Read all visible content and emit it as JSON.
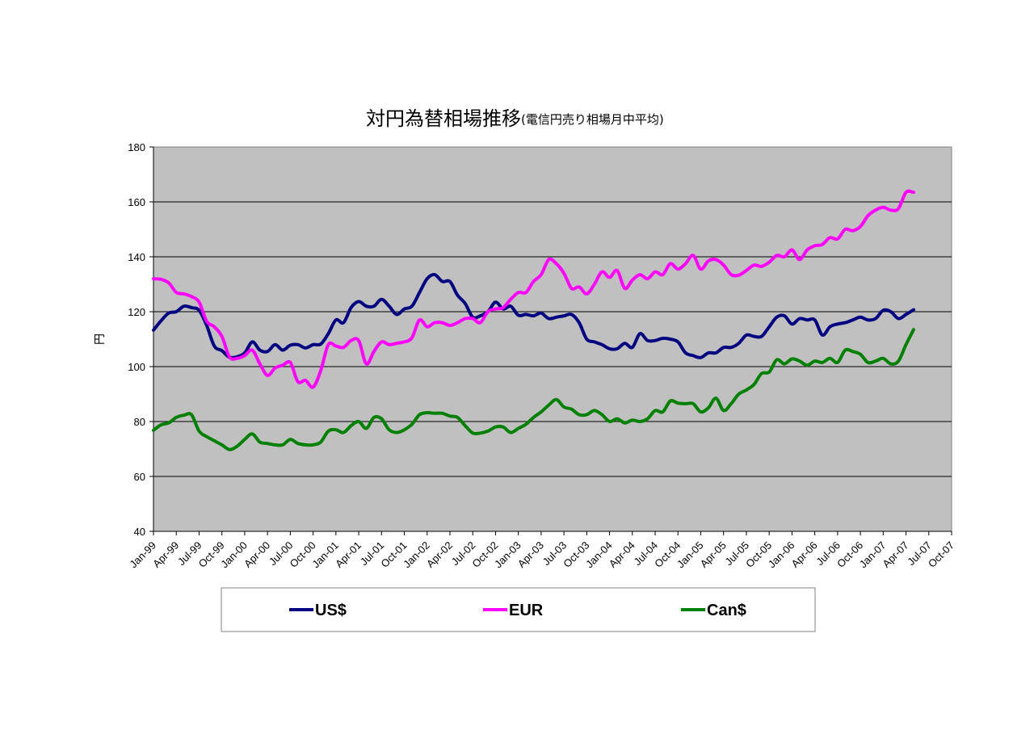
{
  "chart_data": {
    "type": "line",
    "title": "対円為替相場推移",
    "subtitle": "(電信円売り相場月中平均)",
    "ylabel": "円",
    "ylim": [
      40,
      180
    ],
    "yticks": [
      40,
      60,
      80,
      100,
      120,
      140,
      160,
      180
    ],
    "grid": true,
    "legend": "bottom",
    "x_tick_labels": [
      "Jan-99",
      "Apr-99",
      "Jul-99",
      "Oct-99",
      "Jan-00",
      "Apr-00",
      "Jul-00",
      "Oct-00",
      "Jan-01",
      "Apr-01",
      "Jul-01",
      "Oct-01",
      "Jan-02",
      "Apr-02",
      "Jul-02",
      "Oct-02",
      "Jan-03",
      "Apr-03",
      "Jul-03",
      "Oct-03",
      "Jan-04",
      "Apr-04",
      "Jul-04",
      "Oct-04",
      "Jan-05",
      "Apr-05",
      "Jul-05",
      "Oct-05",
      "Jan-06",
      "Apr-06",
      "Jul-06",
      "Oct-06",
      "Jan-07",
      "Apr-07",
      "Jul-07",
      "Oct-07"
    ],
    "plot_background": "#c0c0c0",
    "series": [
      {
        "name": "US$",
        "color": "#000080",
        "values": [
          113.3,
          116.7,
          119.5,
          120.0,
          122.0,
          121.5,
          120.5,
          115.0,
          107.5,
          105.8,
          103.4,
          103.6,
          105.0,
          109.0,
          106.0,
          105.5,
          108.0,
          106.0,
          107.8,
          108.0,
          106.8,
          108.0,
          108.2,
          112.0,
          117.0,
          116.0,
          121.5,
          123.7,
          122.0,
          122.0,
          124.5,
          122.0,
          119.0,
          121.0,
          122.0,
          127.0,
          132.0,
          133.5,
          131.0,
          131.0,
          126.0,
          123.0,
          118.0,
          118.5,
          120.0,
          123.5,
          121.0,
          122.0,
          118.7,
          119.0,
          118.5,
          119.5,
          117.5,
          118.0,
          118.5,
          119.0,
          116.0,
          110.0,
          109.0,
          108.0,
          106.5,
          106.5,
          108.5,
          107.0,
          112.0,
          109.5,
          109.5,
          110.3,
          110.0,
          109.0,
          105.0,
          104.0,
          103.3,
          105.0,
          105.0,
          107.0,
          107.0,
          108.5,
          111.5,
          111.0,
          111.0,
          114.5,
          118.0,
          118.5,
          115.5,
          117.5,
          117.0,
          117.0,
          111.5,
          114.5,
          115.5,
          116.0,
          117.0,
          118.0,
          117.0,
          117.5,
          120.5,
          120.0,
          117.5,
          119.0,
          120.7
        ]
      },
      {
        "name": "EUR",
        "color": "#ff00ff",
        "values": [
          132.0,
          131.8,
          130.5,
          127.0,
          126.5,
          125.5,
          123.5,
          116.5,
          114.5,
          111.0,
          103.5,
          103.0,
          104.0,
          106.0,
          101.0,
          96.8,
          99.5,
          100.5,
          101.5,
          94.5,
          95.0,
          92.5,
          98.5,
          108.0,
          107.5,
          107.0,
          109.5,
          109.5,
          101.0,
          105.5,
          109.0,
          108.0,
          108.5,
          109.0,
          110.5,
          117.0,
          114.5,
          116.0,
          116.0,
          115.0,
          116.0,
          117.5,
          117.5,
          116.0,
          120.0,
          121.0,
          121.5,
          124.5,
          127.0,
          127.0,
          131.0,
          133.5,
          139.0,
          137.5,
          134.0,
          128.5,
          129.0,
          126.5,
          130.0,
          134.5,
          132.5,
          135.0,
          128.5,
          131.5,
          133.5,
          132.0,
          134.5,
          133.5,
          137.5,
          135.5,
          137.5,
          140.5,
          135.5,
          138.5,
          139.0,
          137.0,
          133.5,
          133.3,
          135.0,
          137.0,
          136.5,
          138.0,
          140.5,
          140.0,
          142.5,
          139.0,
          142.5,
          144.0,
          144.5,
          147.0,
          146.5,
          150.0,
          149.5,
          151.0,
          155.0,
          157.0,
          158.0,
          157.0,
          157.5,
          163.5,
          163.5
        ]
      },
      {
        "name": "Can$",
        "color": "#008000",
        "values": [
          76.8,
          78.8,
          79.5,
          81.5,
          82.3,
          82.5,
          76.5,
          74.5,
          73.0,
          71.5,
          69.8,
          71.0,
          73.5,
          75.5,
          72.5,
          72.0,
          71.5,
          71.5,
          73.5,
          72.0,
          71.5,
          71.5,
          72.5,
          76.5,
          77.0,
          76.0,
          78.5,
          80.0,
          77.5,
          81.5,
          81.0,
          77.0,
          76.0,
          77.0,
          79.0,
          82.5,
          83.2,
          83.0,
          83.0,
          82.0,
          81.5,
          78.5,
          75.8,
          75.8,
          76.5,
          78.0,
          78.0,
          76.0,
          77.5,
          79.0,
          81.5,
          83.5,
          86.0,
          88.0,
          85.3,
          84.5,
          82.5,
          82.5,
          84.0,
          82.5,
          80.0,
          81.0,
          79.5,
          80.5,
          80.0,
          81.0,
          84.0,
          83.5,
          87.5,
          86.7,
          86.5,
          86.5,
          83.5,
          85.0,
          88.5,
          84.0,
          86.5,
          90.0,
          91.5,
          93.5,
          97.5,
          98.0,
          102.5,
          101.0,
          102.8,
          102.0,
          100.5,
          102.0,
          101.5,
          103.0,
          101.5,
          106.0,
          105.5,
          104.5,
          101.5,
          102.0,
          103.0,
          101.0,
          102.0,
          108.0,
          113.5
        ]
      }
    ]
  }
}
